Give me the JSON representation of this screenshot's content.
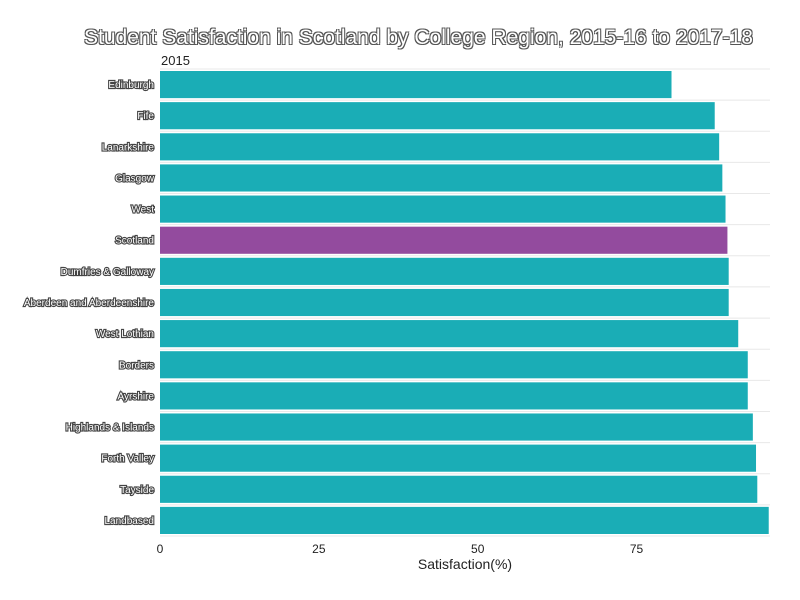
{
  "chart_data": {
    "type": "bar",
    "orientation": "horizontal",
    "title": "Student Satisfaction in Scotland by College Region, 2015-16 to 2017-18",
    "subtitle": "2015",
    "xlabel": "Satisfaction(%)",
    "ylabel": "",
    "xlim": [
      0,
      96
    ],
    "xticks": [
      0,
      25,
      50,
      75
    ],
    "categories": [
      "Edinburgh",
      "Fife",
      "Lanarkshire",
      "Glasgow",
      "West",
      "Scotland",
      "Dumfries & Galloway",
      "Aberdeen and Aberdeenshire",
      "West Lothian",
      "Borders",
      "Ayrshire",
      "Highlands & Islands",
      "Forth Valley",
      "Tayside",
      "Landbased"
    ],
    "values": [
      80.5,
      87.3,
      88.0,
      88.5,
      89.0,
      89.3,
      89.5,
      89.5,
      91.0,
      92.5,
      92.5,
      93.3,
      93.8,
      94.0,
      95.8
    ],
    "colors": {
      "bar": "#1aadb6",
      "highlight": "#934b9e",
      "grid": "#e8e8e8"
    },
    "highlight_category": "Scotland",
    "grid": true,
    "legend": "none"
  }
}
